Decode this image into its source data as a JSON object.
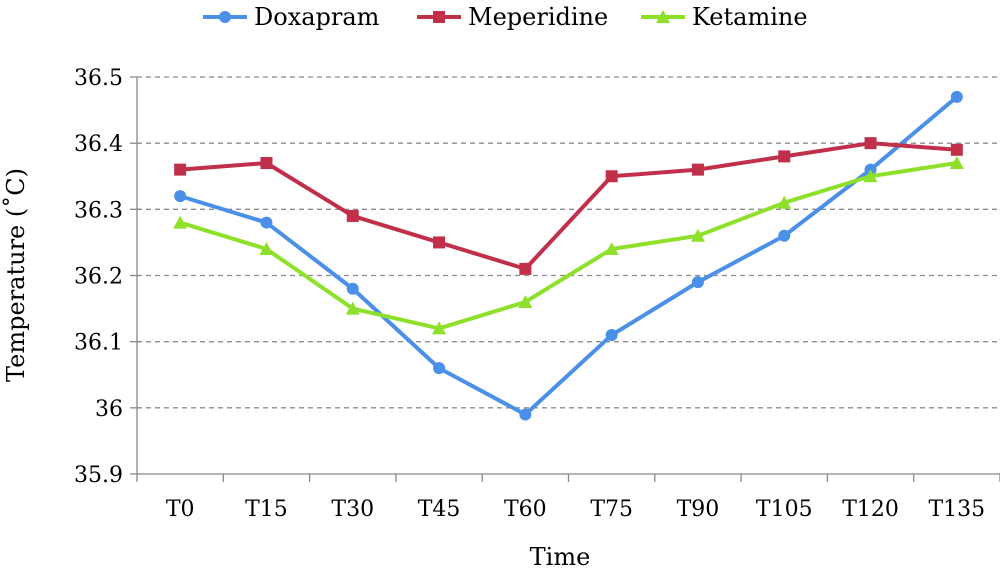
{
  "chart_data": {
    "type": "line",
    "categories": [
      "T0",
      "T15",
      "T30",
      "T45",
      "T60",
      "T75",
      "T90",
      "T105",
      "T120",
      "T135"
    ],
    "series": [
      {
        "name": "Doxapram",
        "color": "#4a8fe8",
        "marker": "circle",
        "values": [
          36.32,
          36.28,
          36.18,
          36.06,
          35.99,
          36.11,
          36.19,
          36.26,
          36.36,
          36.47
        ]
      },
      {
        "name": "Meperidine",
        "color": "#c0304a",
        "marker": "square",
        "values": [
          36.36,
          36.37,
          36.29,
          36.25,
          36.21,
          36.35,
          36.36,
          36.38,
          36.4,
          36.39
        ]
      },
      {
        "name": "Ketamine",
        "color": "#8ee02a",
        "marker": "triangle",
        "values": [
          36.28,
          36.24,
          36.15,
          36.12,
          36.16,
          36.24,
          36.26,
          36.31,
          36.35,
          36.37
        ]
      }
    ],
    "xlabel": "Time",
    "ylabel": "Temperature (˚C)",
    "ylim": [
      35.9,
      36.5
    ],
    "yticks": [
      "35.9",
      "36",
      "36.1",
      "36.2",
      "36.3",
      "36.4",
      "36.5"
    ],
    "grid": "horizontal dashed",
    "legend": "top"
  }
}
